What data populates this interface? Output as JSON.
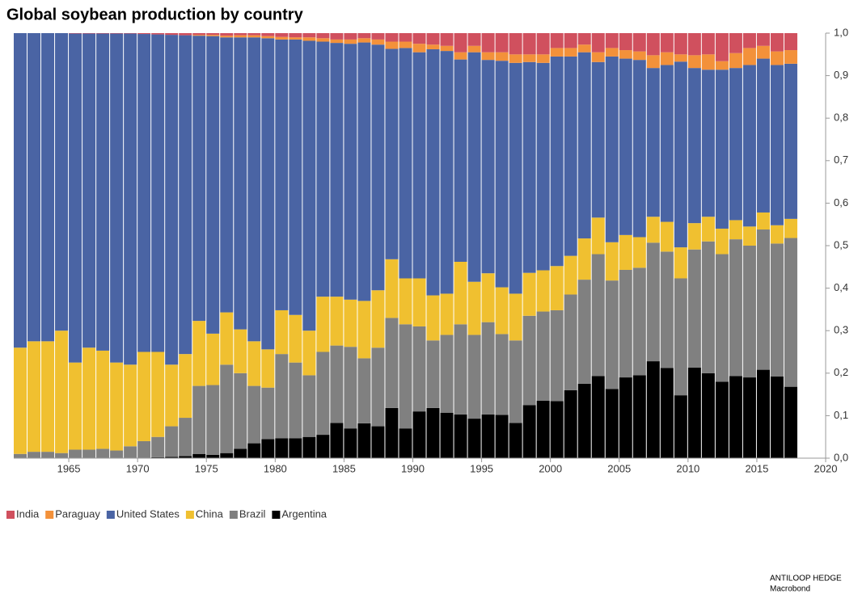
{
  "chart_data": {
    "type": "stacked_bar",
    "title": "Global soybean production by country",
    "source": [
      "ANTILOOP HEDGE",
      "Macrobond"
    ],
    "x": [
      1961,
      1962,
      1963,
      1964,
      1965,
      1966,
      1967,
      1968,
      1969,
      1970,
      1971,
      1972,
      1973,
      1974,
      1975,
      1976,
      1977,
      1978,
      1979,
      1980,
      1981,
      1982,
      1983,
      1984,
      1985,
      1986,
      1987,
      1988,
      1989,
      1990,
      1991,
      1992,
      1993,
      1994,
      1995,
      1996,
      1997,
      1998,
      1999,
      2000,
      2001,
      2002,
      2003,
      2004,
      2005,
      2006,
      2007,
      2008,
      2009,
      2010,
      2011,
      2012,
      2013,
      2014,
      2015,
      2016,
      2017
    ],
    "xlim": [
      1961,
      2020
    ],
    "xticks": [
      1965,
      1970,
      1975,
      1980,
      1985,
      1990,
      1995,
      2000,
      2005,
      2010,
      2015,
      2020
    ],
    "ylim": [
      0,
      1
    ],
    "yticks": [
      {
        "value": 0,
        "label": "0,0"
      },
      {
        "value": 0.1,
        "label": "0,1"
      },
      {
        "value": 0.2,
        "label": "0,2"
      },
      {
        "value": 0.3,
        "label": "0,3"
      },
      {
        "value": 0.4,
        "label": "0,4"
      },
      {
        "value": 0.5,
        "label": "0,5"
      },
      {
        "value": 0.6,
        "label": "0,6"
      },
      {
        "value": 0.7,
        "label": "0,7"
      },
      {
        "value": 0.8,
        "label": "0,8"
      },
      {
        "value": 0.9,
        "label": "0,9"
      },
      {
        "value": 1,
        "label": "1,0"
      }
    ],
    "legend": "bottom-left",
    "series": [
      {
        "name": "India",
        "color": "#d0505e",
        "values": [
          0,
          0,
          0,
          0,
          0.001,
          0.001,
          0.001,
          0.001,
          0.001,
          0.002,
          0.003,
          0.004,
          0.005,
          0.004,
          0.004,
          0.006,
          0.005,
          0.005,
          0.007,
          0.009,
          0.01,
          0.01,
          0.012,
          0.015,
          0.015,
          0.012,
          0.015,
          0.02,
          0.02,
          0.025,
          0.027,
          0.03,
          0.045,
          0.03,
          0.045,
          0.045,
          0.05,
          0.05,
          0.05,
          0.035,
          0.035,
          0.027,
          0.045,
          0.035,
          0.04,
          0.043,
          0.052,
          0.045,
          0.05,
          0.052,
          0.05,
          0.066,
          0.047,
          0.035,
          0.03,
          0.043,
          0.04
        ]
      },
      {
        "name": "Paraguay",
        "color": "#f3913a",
        "values": [
          0,
          0,
          0,
          0,
          0,
          0,
          0,
          0,
          0,
          0,
          0,
          0,
          0,
          0.002,
          0.003,
          0.004,
          0.005,
          0.005,
          0.005,
          0.006,
          0.005,
          0.008,
          0.008,
          0.008,
          0.01,
          0.01,
          0.012,
          0.017,
          0.015,
          0.02,
          0.011,
          0.012,
          0.017,
          0.015,
          0.018,
          0.02,
          0.02,
          0.018,
          0.02,
          0.02,
          0.02,
          0.018,
          0.023,
          0.02,
          0.02,
          0.02,
          0.03,
          0.03,
          0.017,
          0.03,
          0.036,
          0.02,
          0.035,
          0.04,
          0.03,
          0.032,
          0.032
        ]
      },
      {
        "name": "United States",
        "color": "#4a64a4",
        "values": [
          0.74,
          0.725,
          0.725,
          0.7,
          0.774,
          0.739,
          0.746,
          0.774,
          0.779,
          0.748,
          0.747,
          0.776,
          0.75,
          0.671,
          0.7,
          0.647,
          0.687,
          0.715,
          0.732,
          0.637,
          0.648,
          0.682,
          0.6,
          0.597,
          0.602,
          0.608,
          0.578,
          0.495,
          0.542,
          0.532,
          0.579,
          0.571,
          0.476,
          0.54,
          0.502,
          0.533,
          0.543,
          0.496,
          0.488,
          0.493,
          0.469,
          0.438,
          0.366,
          0.437,
          0.415,
          0.417,
          0.35,
          0.369,
          0.437,
          0.365,
          0.346,
          0.374,
          0.358,
          0.38,
          0.362,
          0.377,
          0.365
        ]
      },
      {
        "name": "China",
        "color": "#f0c030",
        "values": [
          0.25,
          0.26,
          0.26,
          0.288,
          0.205,
          0.24,
          0.231,
          0.207,
          0.192,
          0.21,
          0.2,
          0.145,
          0.15,
          0.153,
          0.121,
          0.123,
          0.103,
          0.105,
          0.09,
          0.103,
          0.112,
          0.105,
          0.13,
          0.115,
          0.111,
          0.135,
          0.135,
          0.138,
          0.108,
          0.113,
          0.106,
          0.097,
          0.147,
          0.125,
          0.115,
          0.11,
          0.11,
          0.101,
          0.097,
          0.104,
          0.091,
          0.097,
          0.086,
          0.09,
          0.082,
          0.072,
          0.061,
          0.07,
          0.073,
          0.062,
          0.058,
          0.06,
          0.045,
          0.045,
          0.04,
          0.043,
          0.045
        ]
      },
      {
        "name": "Brazil",
        "color": "#808080",
        "values": [
          0.01,
          0.015,
          0.015,
          0.012,
          0.02,
          0.02,
          0.022,
          0.018,
          0.028,
          0.04,
          0.048,
          0.072,
          0.09,
          0.16,
          0.164,
          0.208,
          0.178,
          0.135,
          0.121,
          0.198,
          0.178,
          0.145,
          0.195,
          0.182,
          0.192,
          0.153,
          0.185,
          0.212,
          0.245,
          0.2,
          0.159,
          0.183,
          0.212,
          0.197,
          0.217,
          0.19,
          0.194,
          0.21,
          0.21,
          0.214,
          0.225,
          0.245,
          0.287,
          0.255,
          0.253,
          0.253,
          0.279,
          0.274,
          0.275,
          0.278,
          0.31,
          0.3,
          0.322,
          0.31,
          0.33,
          0.313,
          0.35
        ]
      },
      {
        "name": "Argentina",
        "color": "#000000",
        "values": [
          0,
          0,
          0,
          0,
          0,
          0,
          0,
          0,
          0,
          0,
          0.002,
          0.003,
          0.005,
          0.01,
          0.008,
          0.012,
          0.022,
          0.035,
          0.045,
          0.047,
          0.047,
          0.05,
          0.055,
          0.083,
          0.07,
          0.082,
          0.075,
          0.118,
          0.07,
          0.11,
          0.118,
          0.107,
          0.103,
          0.093,
          0.103,
          0.102,
          0.083,
          0.125,
          0.135,
          0.134,
          0.16,
          0.175,
          0.193,
          0.163,
          0.19,
          0.195,
          0.228,
          0.212,
          0.148,
          0.213,
          0.2,
          0.18,
          0.193,
          0.19,
          0.208,
          0.192,
          0.168
        ]
      }
    ]
  }
}
